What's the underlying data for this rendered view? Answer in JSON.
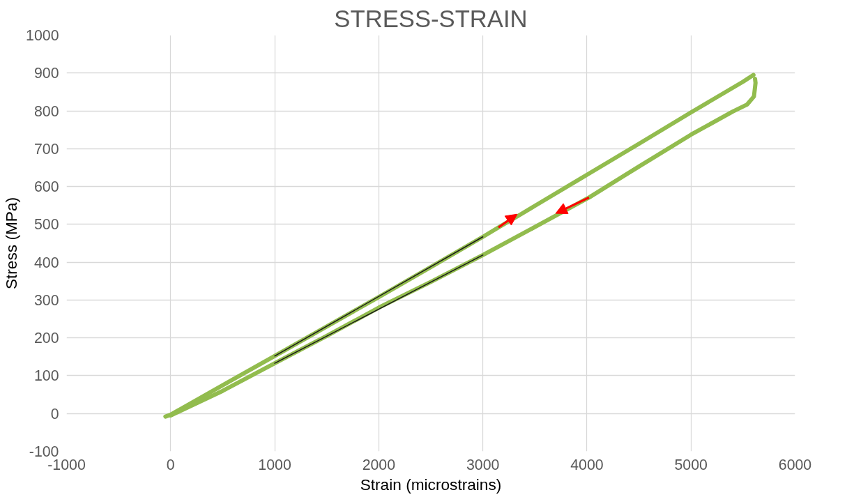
{
  "chart_data": {
    "type": "line",
    "title": "STRESS-STRAIN",
    "xlabel": "Strain (microstrains)",
    "ylabel": "Stress (MPa)",
    "xlim": [
      -1000,
      6000
    ],
    "xticks": [
      -1000,
      0,
      1000,
      2000,
      3000,
      4000,
      5000,
      6000
    ],
    "ylim": [
      -100,
      1000
    ],
    "yticks": [
      -100,
      0,
      100,
      200,
      300,
      400,
      500,
      600,
      700,
      800,
      900,
      1000
    ],
    "grid": true,
    "marker": "none",
    "line_style": "solid",
    "series": [
      {
        "color": "#92bc4e",
        "x": [
          -50,
          0,
          500,
          1000,
          1500,
          2000,
          2500,
          3000,
          3150,
          3330,
          3500,
          4000,
          4500,
          5000,
          5500,
          5600
        ],
        "values": [
          -8,
          -3,
          75,
          152,
          230,
          308,
          387,
          467,
          492,
          521,
          549,
          631,
          713,
          796,
          877,
          895
        ]
      },
      {
        "color": "#92bc4e",
        "x": [
          5615,
          5620,
          5605,
          5540,
          5400,
          5000,
          4500,
          4020,
          4000,
          3700,
          3500,
          3000,
          2500,
          2000,
          1500,
          1000,
          500,
          0
        ],
        "values": [
          885,
          874,
          838,
          817,
          798,
          737,
          653,
          571,
          568,
          523,
          493,
          419,
          348,
          280,
          205,
          133,
          60,
          -5
        ]
      },
      {
        "type": "line",
        "color": "#1a1a1a",
        "x": [
          1000,
          3000
        ],
        "values": [
          152,
          467
        ]
      },
      {
        "type": "line",
        "color": "#1a1a1a",
        "x": [
          1000,
          3000
        ],
        "values": [
          133,
          419
        ]
      }
    ]
  }
}
